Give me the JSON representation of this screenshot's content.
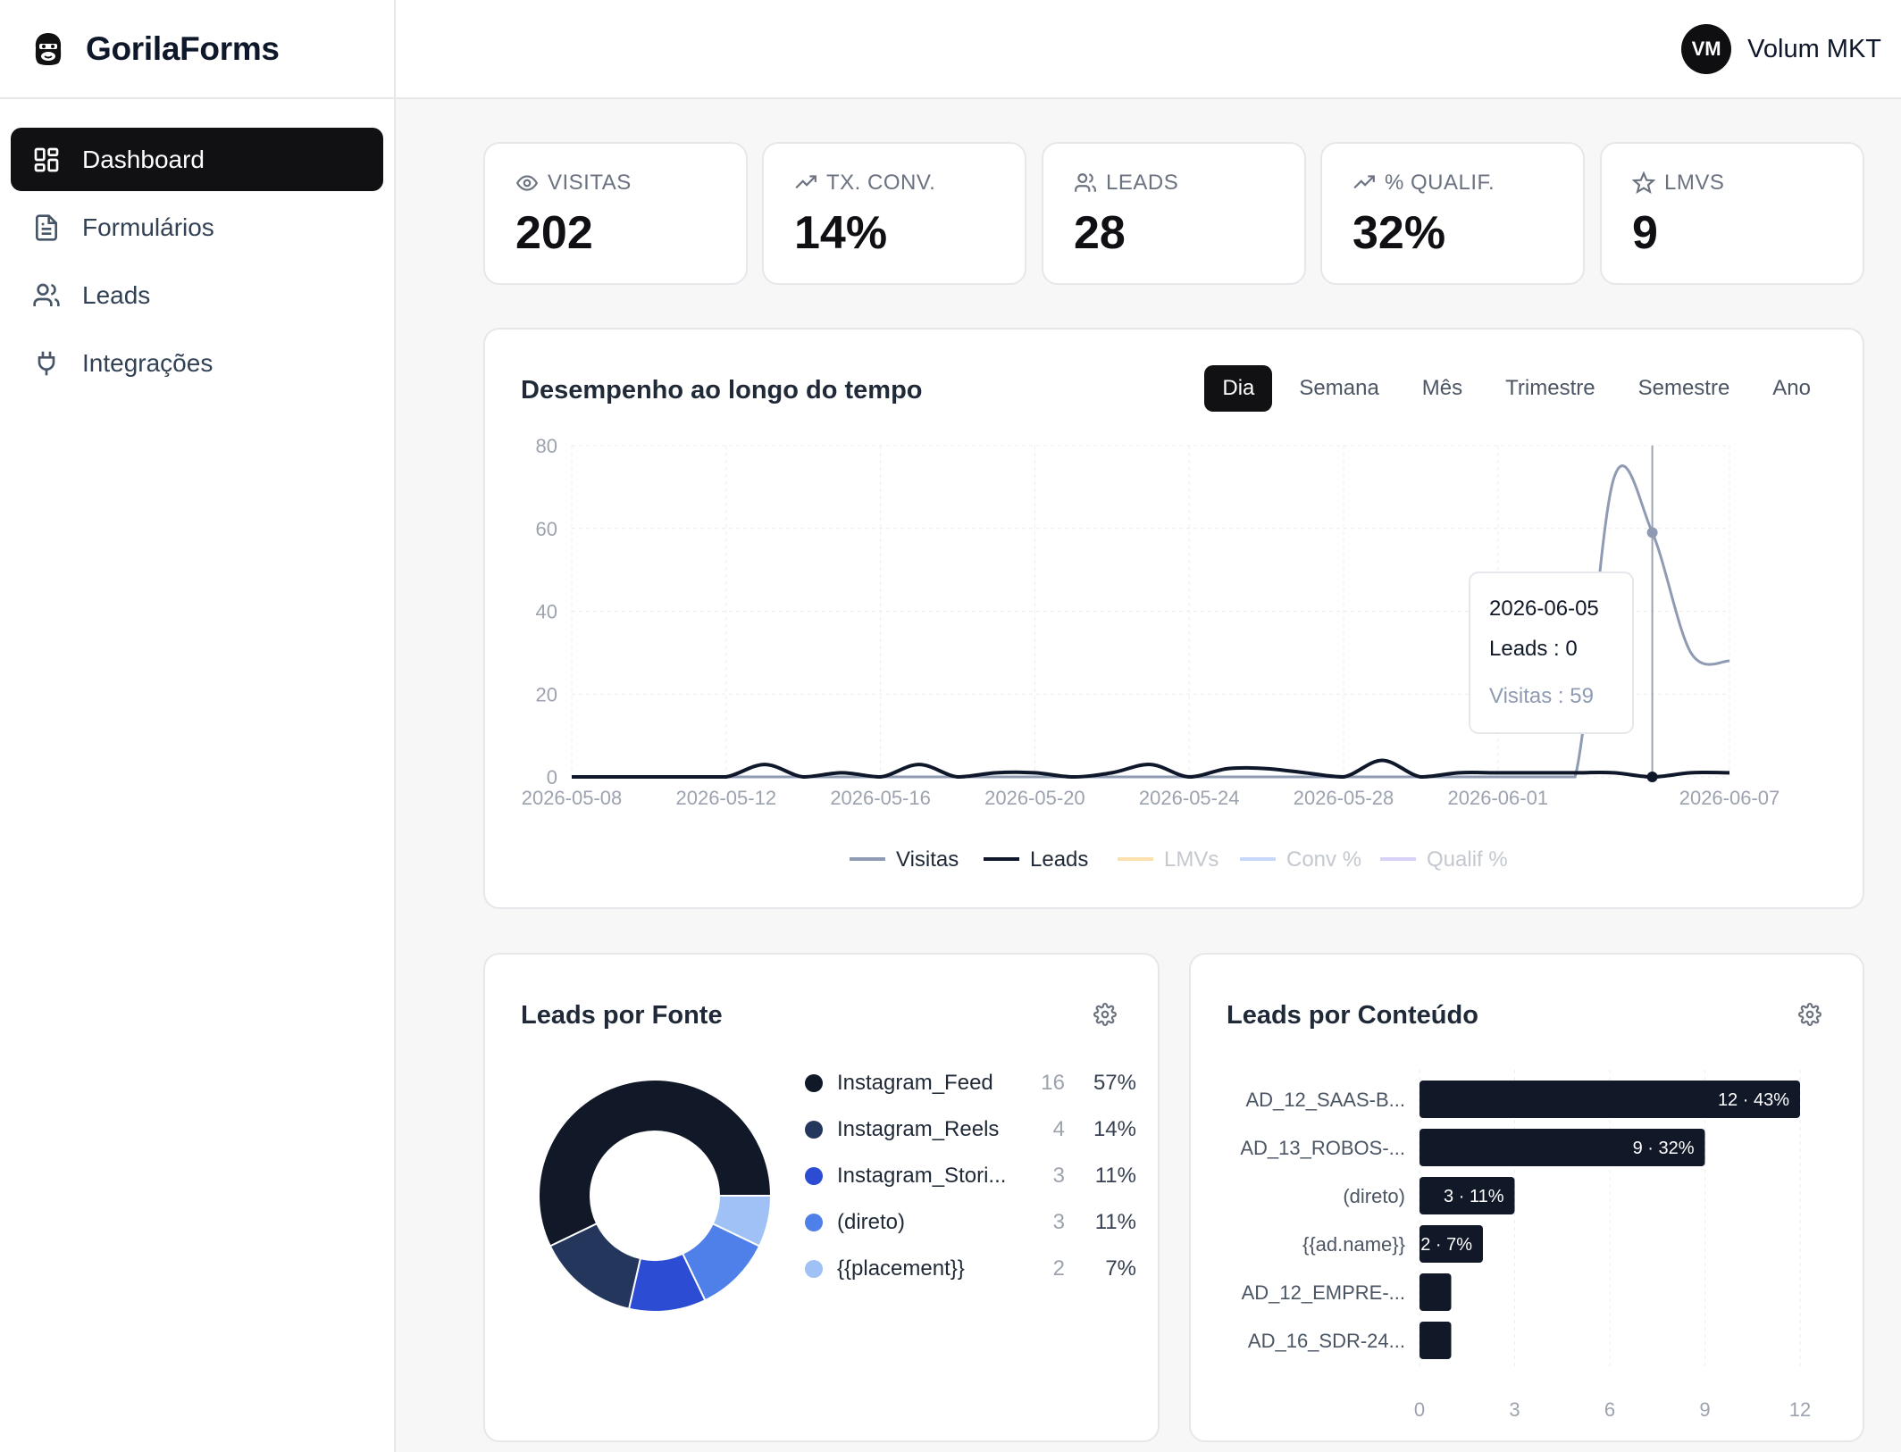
{
  "app": {
    "name": "GorilaForms",
    "logo_icon": "gorilla-icon"
  },
  "sidebar": {
    "items": [
      {
        "label": "Dashboard",
        "icon": "dashboard-icon",
        "active": true
      },
      {
        "label": "Formulários",
        "icon": "document-icon",
        "active": false
      },
      {
        "label": "Leads",
        "icon": "users-icon",
        "active": false
      },
      {
        "label": "Integrações",
        "icon": "plug-icon",
        "active": false
      }
    ]
  },
  "user": {
    "initials": "VM",
    "name": "Volum MKT"
  },
  "stats": [
    {
      "label": "VISITAS",
      "value": "202",
      "icon": "eye-icon"
    },
    {
      "label": "TX. CONV.",
      "value": "14%",
      "icon": "trending-up-icon"
    },
    {
      "label": "LEADS",
      "value": "28",
      "icon": "users-icon"
    },
    {
      "label": "% QUALIF.",
      "value": "32%",
      "icon": "trending-up-icon"
    },
    {
      "label": "LMVS",
      "value": "9",
      "icon": "star-icon"
    }
  ],
  "performance": {
    "title": "Desempenho ao longo do tempo",
    "periods": [
      "Dia",
      "Semana",
      "Mês",
      "Trimestre",
      "Semestre",
      "Ano"
    ],
    "active_period": "Dia",
    "tooltip": {
      "date": "2026-06-05",
      "leads": "Leads : 0",
      "visitas": "Visitas : 59"
    },
    "legend": [
      {
        "name": "Visitas",
        "color": "#8f9bb3",
        "active": true
      },
      {
        "name": "Leads",
        "color": "#0f172a",
        "active": true
      },
      {
        "name": "LMVs",
        "color": "#fde1ad",
        "active": false
      },
      {
        "name": "Conv %",
        "color": "#c7d6fb",
        "active": false
      },
      {
        "name": "Qualif %",
        "color": "#d6d2f7",
        "active": false
      }
    ]
  },
  "chart_data": [
    {
      "type": "line",
      "title": "Desempenho ao longo do tempo",
      "x_tick_labels": [
        "2026-05-08",
        "2026-05-12",
        "2026-05-16",
        "2026-05-20",
        "2026-05-24",
        "2026-05-28",
        "2026-06-01",
        "2026-06-07"
      ],
      "y_ticks": [
        0,
        20,
        40,
        60,
        80
      ],
      "ylim": [
        0,
        80
      ],
      "x": [
        "2026-05-08",
        "2026-05-09",
        "2026-05-10",
        "2026-05-11",
        "2026-05-12",
        "2026-05-13",
        "2026-05-14",
        "2026-05-15",
        "2026-05-16",
        "2026-05-17",
        "2026-05-18",
        "2026-05-19",
        "2026-05-20",
        "2026-05-21",
        "2026-05-22",
        "2026-05-23",
        "2026-05-24",
        "2026-05-25",
        "2026-05-26",
        "2026-05-27",
        "2026-05-28",
        "2026-05-29",
        "2026-05-30",
        "2026-05-31",
        "2026-06-01",
        "2026-06-02",
        "2026-06-03",
        "2026-06-04",
        "2026-06-05",
        "2026-06-06",
        "2026-06-07"
      ],
      "series": [
        {
          "name": "Visitas",
          "values": [
            0,
            0,
            0,
            0,
            0,
            0,
            0,
            0,
            0,
            0,
            0,
            0,
            0,
            0,
            0,
            0,
            0,
            0,
            0,
            0,
            0,
            0,
            0,
            0,
            0,
            0,
            0,
            72,
            59,
            30,
            28
          ]
        },
        {
          "name": "Leads",
          "values": [
            0,
            0,
            0,
            0,
            0,
            3,
            0,
            1,
            0,
            3,
            0,
            1,
            1,
            0,
            1,
            3,
            0,
            2,
            2,
            1,
            0,
            4,
            0,
            1,
            1,
            1,
            1,
            1,
            0,
            1,
            1
          ]
        }
      ],
      "grid": true
    },
    {
      "type": "pie",
      "title": "Leads por Fonte",
      "labels": [
        "Instagram_Feed",
        "Instagram_Reels",
        "Instagram_Stori...",
        "(direto)",
        "{{placement}}"
      ],
      "values": [
        16,
        4,
        3,
        3,
        2
      ],
      "percent_labels": [
        "57%",
        "14%",
        "11%",
        "11%",
        "7%"
      ],
      "colors": [
        "#111827",
        "#24365c",
        "#2b4cd3",
        "#4f7fe9",
        "#9fc1f6"
      ]
    },
    {
      "type": "bar",
      "orientation": "horizontal",
      "title": "Leads por Conteúdo",
      "categories": [
        "AD_12_SAAS-B...",
        "AD_13_ROBOS-...",
        "(direto)",
        "{{ad.name}}",
        "AD_12_EMPRE-...",
        "AD_16_SDR-24..."
      ],
      "values": [
        12,
        9,
        3,
        2,
        1,
        1
      ],
      "value_labels": [
        "12 · 43%",
        "9 · 32%",
        "3 · 11%",
        "2 · 7%",
        "",
        ""
      ],
      "x_ticks": [
        0,
        3,
        6,
        9,
        12
      ],
      "xlim": [
        0,
        12
      ],
      "color": "#111827"
    }
  ],
  "fonte_panel": {
    "title": "Leads por Fonte"
  },
  "conteudo_panel": {
    "title": "Leads por Conteúdo"
  }
}
